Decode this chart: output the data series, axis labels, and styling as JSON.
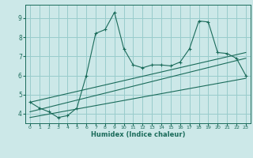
{
  "xlabel": "Humidex (Indice chaleur)",
  "bg_color": "#cce8e8",
  "grid_color": "#99cccc",
  "line_color": "#1a6b5a",
  "xlim": [
    -0.5,
    23.5
  ],
  "ylim": [
    3.5,
    9.7
  ],
  "xticks": [
    0,
    1,
    2,
    3,
    4,
    5,
    6,
    7,
    8,
    9,
    10,
    11,
    12,
    13,
    14,
    15,
    16,
    17,
    18,
    19,
    20,
    21,
    22,
    23
  ],
  "yticks": [
    4,
    5,
    6,
    7,
    8,
    9
  ],
  "line1_x": [
    0,
    1,
    2,
    3,
    4,
    5,
    6,
    7,
    8,
    9,
    10,
    11,
    12,
    13,
    14,
    15,
    16,
    17,
    18,
    19,
    20,
    21,
    22,
    23
  ],
  "line1_y": [
    4.6,
    4.3,
    4.1,
    3.8,
    3.9,
    4.3,
    6.0,
    8.2,
    8.4,
    9.3,
    7.4,
    6.55,
    6.4,
    6.55,
    6.55,
    6.5,
    6.7,
    7.4,
    8.85,
    8.8,
    7.2,
    7.15,
    6.9,
    6.0
  ],
  "line2_x": [
    0,
    23
  ],
  "line2_y": [
    4.6,
    7.2
  ],
  "line3_x": [
    0,
    23
  ],
  "line3_y": [
    4.1,
    6.9
  ],
  "line4_x": [
    0,
    23
  ],
  "line4_y": [
    3.8,
    5.85
  ]
}
